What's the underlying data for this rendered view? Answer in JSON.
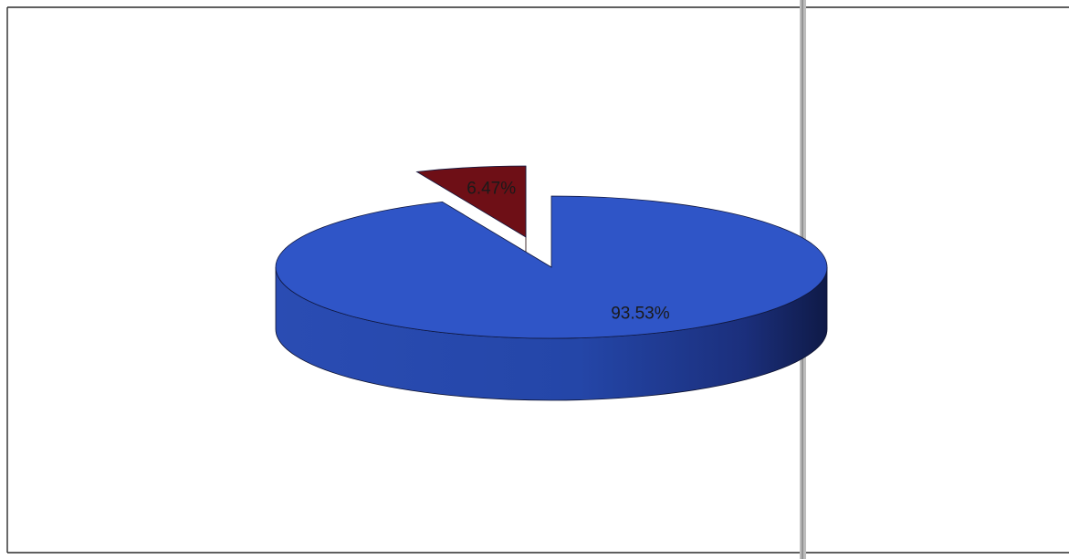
{
  "chart_data": {
    "type": "pie",
    "style": "3d-exploded",
    "slices": [
      {
        "value": 93.53,
        "label": "93.53%",
        "color": "#2f55c7",
        "side_color": "#1f3a9a"
      },
      {
        "value": 6.47,
        "label": "6.47%",
        "color": "#6e0f16",
        "side_color": "#3f070b"
      }
    ]
  }
}
